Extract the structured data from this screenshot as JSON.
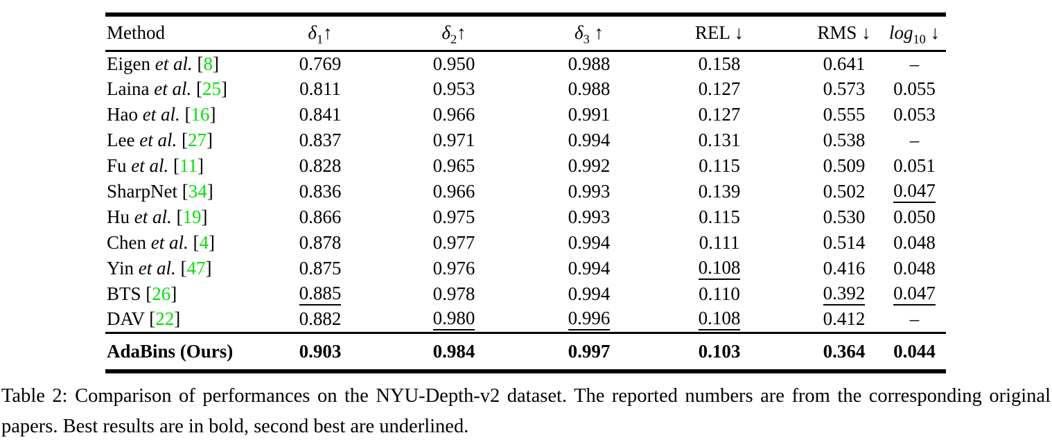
{
  "colors": {
    "text": "#000000",
    "citation_green": "#00e400",
    "rule": "#000000",
    "background": "#ffffff"
  },
  "table": {
    "columns": [
      {
        "key": "method",
        "label": "Method",
        "type": "text"
      },
      {
        "key": "delta1",
        "sym": "δ",
        "sub": "1",
        "arrow": "↑",
        "italic": true
      },
      {
        "key": "delta2",
        "sym": "δ",
        "sub": "2",
        "arrow": "↑",
        "italic": true
      },
      {
        "key": "delta3",
        "sym": "δ",
        "sub": "3",
        "arrow": " ↑",
        "italic": true
      },
      {
        "key": "rel",
        "sym": "REL",
        "sub": "",
        "arrow": " ↓",
        "italic": false
      },
      {
        "key": "rms",
        "sym": "RMS",
        "sub": "",
        "arrow": " ↓",
        "italic": false
      },
      {
        "key": "log10",
        "sym": "log",
        "sub": "10",
        "arrow": " ↓",
        "italic": true
      }
    ],
    "rows": [
      {
        "method": {
          "prefix": "Eigen",
          "etal": "et al.",
          "cite": "8"
        },
        "cells": [
          {
            "t": "0.769"
          },
          {
            "t": "0.950"
          },
          {
            "t": "0.988"
          },
          {
            "t": "0.158"
          },
          {
            "t": "0.641"
          },
          {
            "t": "–"
          }
        ]
      },
      {
        "method": {
          "prefix": "Laina",
          "etal": "et al.",
          "cite": "25"
        },
        "cells": [
          {
            "t": "0.811"
          },
          {
            "t": "0.953"
          },
          {
            "t": "0.988"
          },
          {
            "t": "0.127"
          },
          {
            "t": "0.573"
          },
          {
            "t": "0.055"
          }
        ]
      },
      {
        "method": {
          "prefix": "Hao",
          "etal": "et al.",
          "cite": "16"
        },
        "cells": [
          {
            "t": "0.841"
          },
          {
            "t": "0.966"
          },
          {
            "t": "0.991"
          },
          {
            "t": "0.127"
          },
          {
            "t": "0.555"
          },
          {
            "t": "0.053"
          }
        ]
      },
      {
        "method": {
          "prefix": "Lee",
          "etal": "et al.",
          "cite": "27"
        },
        "cells": [
          {
            "t": "0.837"
          },
          {
            "t": "0.971"
          },
          {
            "t": "0.994"
          },
          {
            "t": "0.131"
          },
          {
            "t": "0.538"
          },
          {
            "t": "–"
          }
        ]
      },
      {
        "method": {
          "prefix": "Fu",
          "etal": "et al.",
          "cite": "11"
        },
        "cells": [
          {
            "t": "0.828"
          },
          {
            "t": "0.965"
          },
          {
            "t": "0.992"
          },
          {
            "t": "0.115"
          },
          {
            "t": "0.509"
          },
          {
            "t": "0.051"
          }
        ]
      },
      {
        "method": {
          "prefix": "SharpNet",
          "etal": "",
          "cite": "34"
        },
        "cells": [
          {
            "t": "0.836"
          },
          {
            "t": "0.966"
          },
          {
            "t": "0.993"
          },
          {
            "t": "0.139"
          },
          {
            "t": "0.502"
          },
          {
            "t": "0.047",
            "u": true
          }
        ]
      },
      {
        "method": {
          "prefix": "Hu",
          "etal": "et al.",
          "cite": "19"
        },
        "cells": [
          {
            "t": "0.866"
          },
          {
            "t": "0.975"
          },
          {
            "t": "0.993"
          },
          {
            "t": "0.115"
          },
          {
            "t": "0.530"
          },
          {
            "t": "0.050"
          }
        ]
      },
      {
        "method": {
          "prefix": "Chen",
          "etal": "et al.",
          "cite": "4"
        },
        "cells": [
          {
            "t": "0.878"
          },
          {
            "t": "0.977"
          },
          {
            "t": "0.994"
          },
          {
            "t": "0.111"
          },
          {
            "t": "0.514"
          },
          {
            "t": "0.048"
          }
        ]
      },
      {
        "method": {
          "prefix": "Yin",
          "etal": "et al.",
          "cite": "47"
        },
        "cells": [
          {
            "t": "0.875"
          },
          {
            "t": "0.976"
          },
          {
            "t": "0.994"
          },
          {
            "t": "0.108",
            "u": true
          },
          {
            "t": "0.416"
          },
          {
            "t": "0.048"
          }
        ]
      },
      {
        "method": {
          "prefix": "BTS",
          "etal": "",
          "cite": "26"
        },
        "cells": [
          {
            "t": "0.885",
            "u": true
          },
          {
            "t": "0.978"
          },
          {
            "t": "0.994"
          },
          {
            "t": "0.110"
          },
          {
            "t": "0.392",
            "u": true
          },
          {
            "t": "0.047",
            "u": true
          }
        ]
      },
      {
        "method": {
          "prefix": "DAV",
          "etal": "",
          "cite": "22"
        },
        "cells": [
          {
            "t": "0.882"
          },
          {
            "t": "0.980",
            "u": true
          },
          {
            "t": "0.996",
            "u": true
          },
          {
            "t": "0.108",
            "u": true
          },
          {
            "t": "0.412"
          },
          {
            "t": "–"
          }
        ]
      }
    ],
    "final_row": {
      "method": {
        "prefix": "AdaBins (Ours)",
        "etal": "",
        "cite": ""
      },
      "bold": true,
      "cells": [
        {
          "t": "0.903"
        },
        {
          "t": "0.984"
        },
        {
          "t": "0.997"
        },
        {
          "t": "0.103"
        },
        {
          "t": "0.364"
        },
        {
          "t": "0.044"
        }
      ]
    }
  },
  "caption": {
    "text": "Table 2: Comparison of performances on the NYU-Depth-v2 dataset. The reported numbers are from the corresponding original papers. Best results are in bold, second best are underlined."
  }
}
